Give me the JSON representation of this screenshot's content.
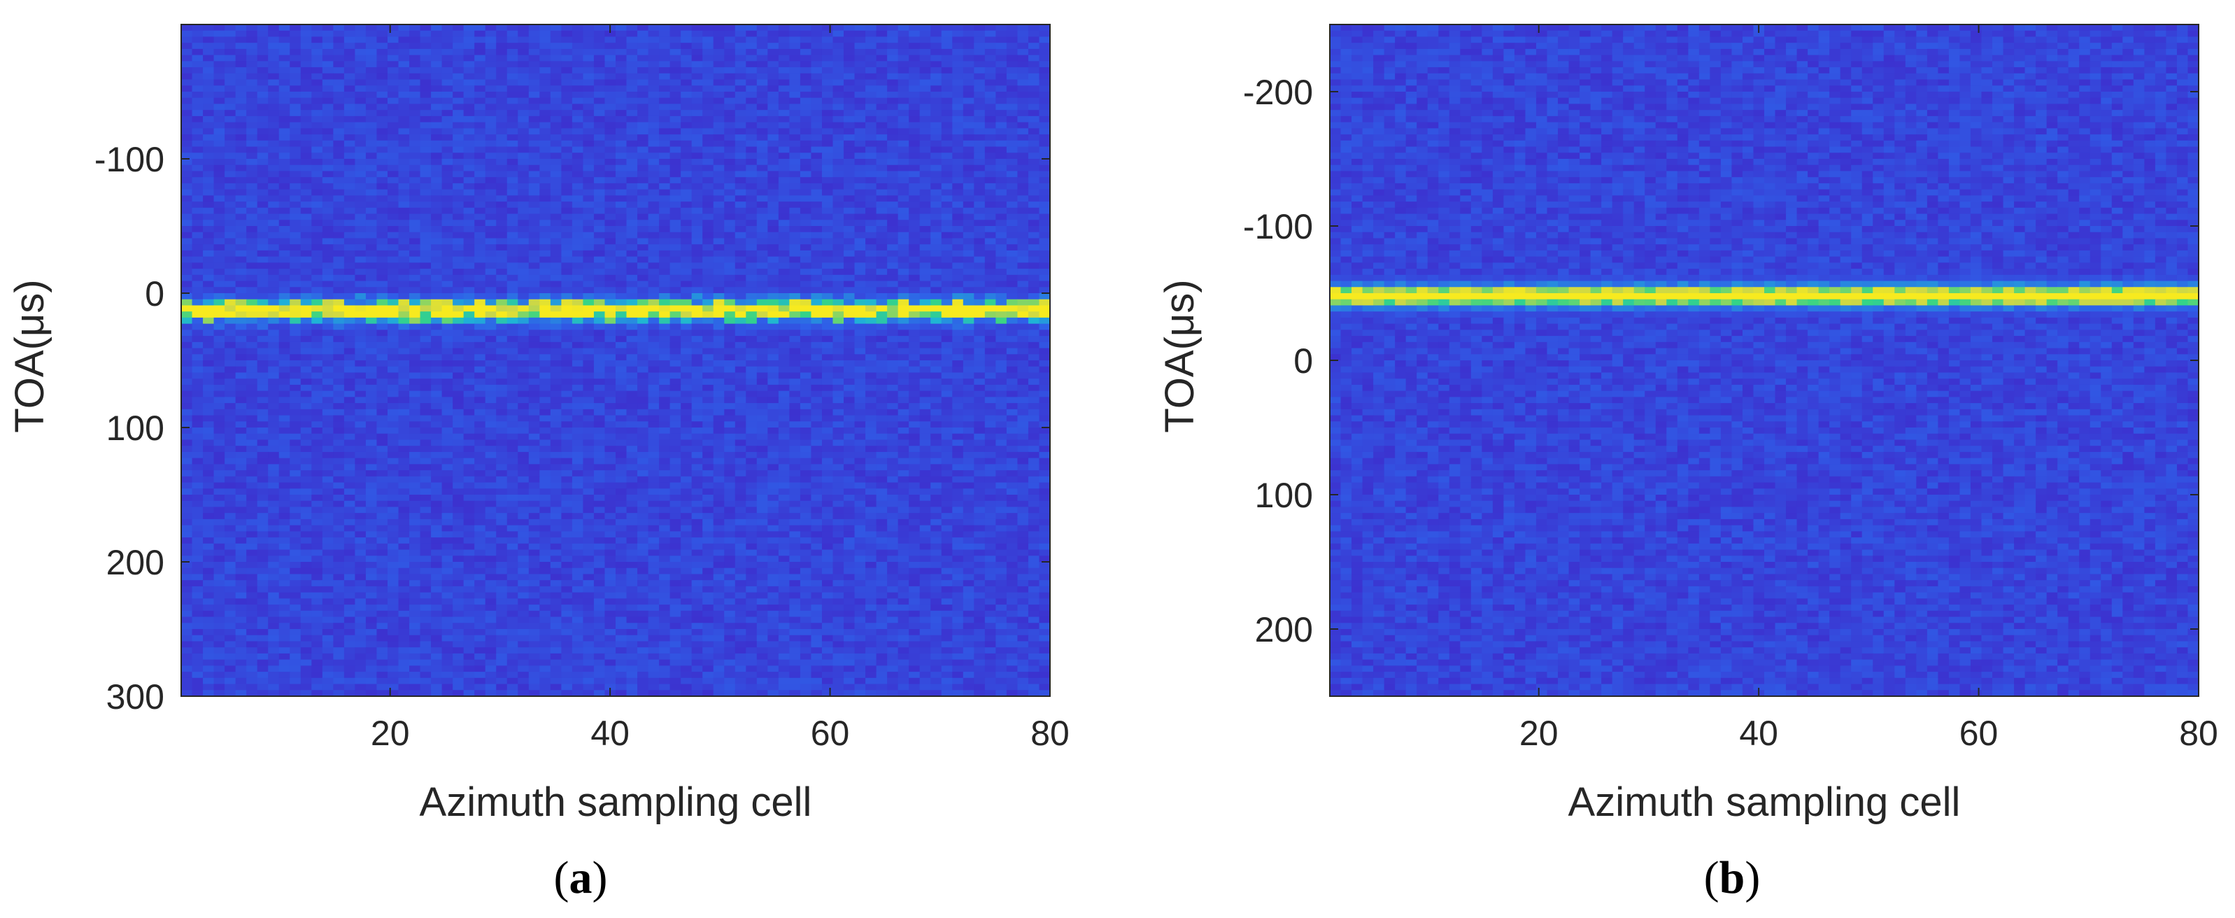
{
  "colors": {
    "background_low": "#3a2fc4",
    "colormap": [
      "#3e2acb",
      "#2f5fe8",
      "#1fb4d6",
      "#35d486",
      "#c8d64a",
      "#f7ea1f"
    ]
  },
  "chart_data": [
    {
      "type": "heatmap",
      "panel": "a",
      "caption": {
        "open": "(",
        "letter": "a",
        "close": ")"
      },
      "xlabel": "Azimuth sampling cell",
      "ylabel": "TOA(μs)",
      "xlim": [
        1,
        80
      ],
      "ylim": [
        -200,
        300
      ],
      "y_reversed": true,
      "xticks": [
        20,
        40,
        60,
        80
      ],
      "yticks": [
        -100,
        0,
        100,
        200,
        300
      ],
      "xtick_labels": [
        "20",
        "40",
        "60",
        "80"
      ],
      "ytick_labels": [
        "-100",
        "0",
        "100",
        "200",
        "300"
      ],
      "bright_line": {
        "toa": 13,
        "peak": "yellow",
        "halo": "cyan"
      },
      "background": "noise",
      "colormap": "parula"
    },
    {
      "type": "heatmap",
      "panel": "b",
      "caption": {
        "open": "(",
        "letter": "b",
        "close": ")"
      },
      "xlabel": "Azimuth sampling cell",
      "ylabel": "TOA(μs)",
      "xlim": [
        1,
        80
      ],
      "ylim": [
        -250,
        250
      ],
      "y_reversed": true,
      "xticks": [
        20,
        40,
        60,
        80
      ],
      "yticks": [
        -200,
        -100,
        0,
        100,
        200
      ],
      "xtick_labels": [
        "20",
        "40",
        "60",
        "80"
      ],
      "ytick_labels": [
        "-200",
        "-100",
        "0",
        "100",
        "200"
      ],
      "bright_line": {
        "toa": -48,
        "peak": "yellow",
        "halo": "cyan"
      },
      "background": "noise",
      "colormap": "parula"
    }
  ]
}
